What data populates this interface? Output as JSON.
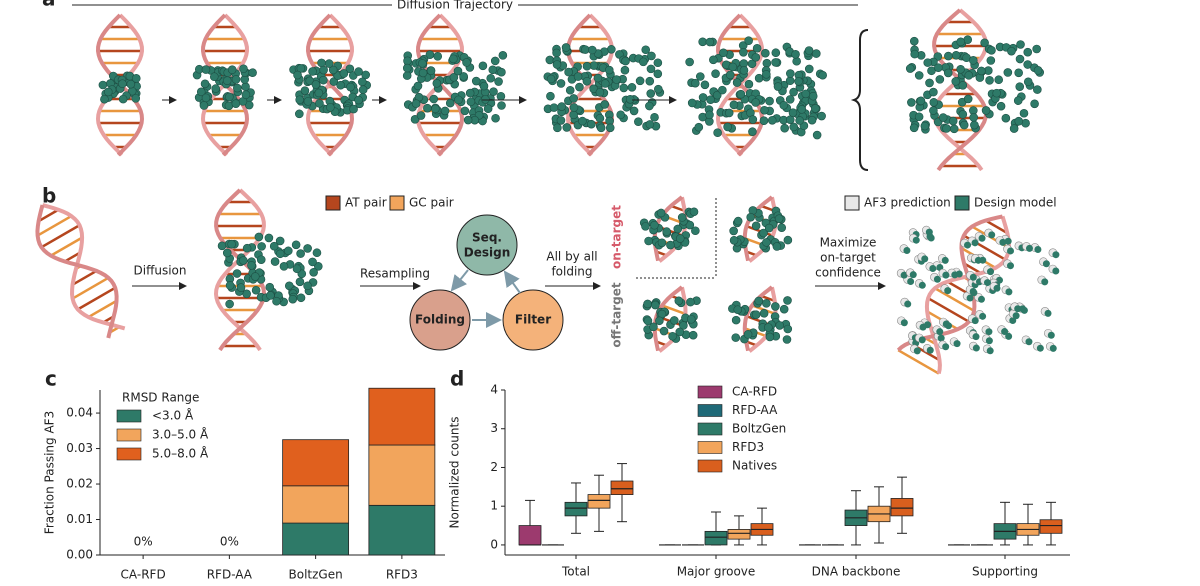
{
  "panel_a": {
    "label": "a",
    "title": "Diffusion Trajectory"
  },
  "panel_b": {
    "label": "b",
    "legend_pairs": [
      "AT pair",
      "GC pair"
    ],
    "legend_models": [
      "AF3 prediction",
      "Design model"
    ],
    "diffusion": "Diffusion",
    "resampling": "Resampling",
    "seq_design": [
      "Seq.",
      "Design"
    ],
    "folding": "Folding",
    "filter": "Filter",
    "all_by_all": [
      "All by all",
      "folding"
    ],
    "on_target": "on-target",
    "off_target": "off-target",
    "maximize": [
      "Maximize",
      "on-target",
      "confidence"
    ]
  },
  "chart_data": [
    {
      "type": "stacked-bar",
      "panel_label": "c",
      "ylabel": "Fraction Passing AF3",
      "legend_title": "RMSD Range",
      "categories": [
        "CA-RFD",
        "RFD-AA",
        "BoltzGen",
        "RFD3"
      ],
      "series": [
        {
          "name": "<3.0 Å",
          "color": "#2e7a68",
          "values": [
            0,
            0,
            0.009,
            0.014
          ],
          "value_labels": [
            "0%",
            "0%",
            null,
            null
          ]
        },
        {
          "name": "3.0–5.0 Å",
          "color": "#f2a55c",
          "values": [
            0,
            0,
            0.0105,
            0.017
          ]
        },
        {
          "name": "5.0–8.0 Å",
          "color": "#e0601e",
          "values": [
            0,
            0,
            0.013,
            0.016
          ]
        }
      ],
      "ylim": [
        0,
        0.0465
      ],
      "yticks": [
        {
          "value": 0,
          "label": "0.00"
        },
        {
          "value": 0.01,
          "label": "0.01"
        },
        {
          "value": 0.02,
          "label": "0.02"
        },
        {
          "value": 0.03,
          "label": "0.03"
        },
        {
          "value": 0.04,
          "label": "0.04"
        }
      ]
    },
    {
      "type": "box",
      "panel_label": "d",
      "ylabel": "Normalized counts",
      "categories": [
        "Total",
        "Major groove",
        "DNA backbone",
        "Supporting"
      ],
      "series": [
        {
          "name": "CA-RFD",
          "color": "#9c3a6e",
          "min": [
            0,
            0,
            0,
            0
          ],
          "q1": [
            0,
            0,
            0,
            0
          ],
          "median": [
            0,
            0,
            0,
            0
          ],
          "q3": [
            0.5,
            0,
            0,
            0
          ],
          "max": [
            1.15,
            0,
            0,
            0
          ]
        },
        {
          "name": "RFD-AA",
          "color": "#1f6a78",
          "min": [
            0,
            0,
            0,
            0
          ],
          "q1": [
            0,
            0,
            0,
            0
          ],
          "median": [
            0,
            0,
            0,
            0
          ],
          "q3": [
            0,
            0,
            0,
            0
          ],
          "max": [
            0,
            0,
            0,
            0
          ]
        },
        {
          "name": "BoltzGen",
          "color": "#2e7a68",
          "min": [
            0.3,
            0,
            0,
            0
          ],
          "q1": [
            0.75,
            0,
            0.5,
            0.15
          ],
          "median": [
            0.95,
            0.2,
            0.7,
            0.35
          ],
          "q3": [
            1.1,
            0.35,
            0.9,
            0.55
          ],
          "max": [
            1.6,
            0.85,
            1.4,
            1.1
          ]
        },
        {
          "name": "RFD3",
          "color": "#f2a55c",
          "min": [
            0.35,
            0,
            0.05,
            0
          ],
          "q1": [
            0.95,
            0.15,
            0.6,
            0.25
          ],
          "median": [
            1.15,
            0.3,
            0.8,
            0.4
          ],
          "q3": [
            1.3,
            0.4,
            1.0,
            0.55
          ],
          "max": [
            1.8,
            0.75,
            1.5,
            1.05
          ]
        },
        {
          "name": "Natives",
          "color": "#d95f1e",
          "min": [
            0.6,
            0,
            0.3,
            0
          ],
          "q1": [
            1.3,
            0.25,
            0.75,
            0.3
          ],
          "median": [
            1.45,
            0.4,
            0.95,
            0.5
          ],
          "q3": [
            1.65,
            0.55,
            1.2,
            0.65
          ],
          "max": [
            2.1,
            0.95,
            1.75,
            1.1
          ]
        }
      ],
      "ylim": [
        -0.26,
        4.0
      ],
      "yticks": [
        0,
        1,
        2,
        3,
        4
      ]
    }
  ]
}
